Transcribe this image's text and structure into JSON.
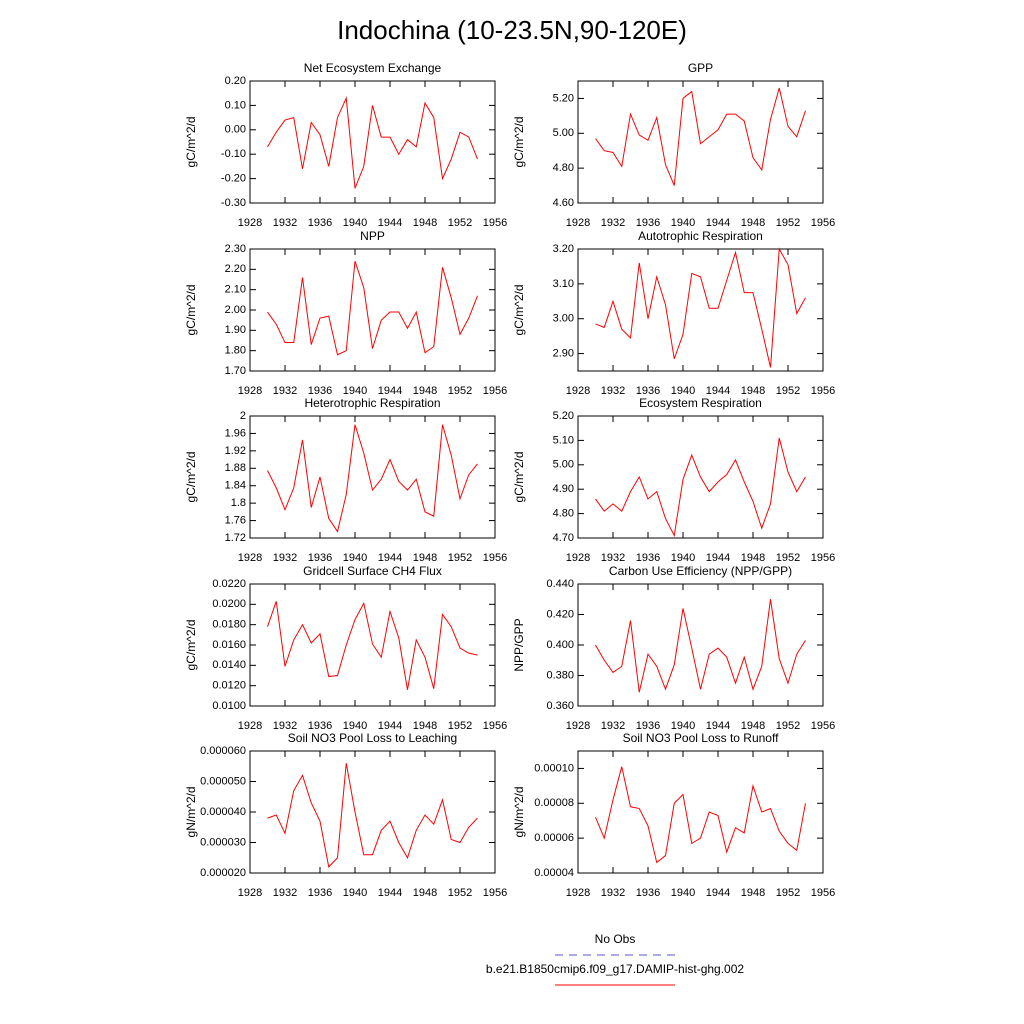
{
  "title": "Indochina (10-23.5N,90-120E)",
  "legend": [
    {
      "name": "No Obs",
      "color": "#5555cc",
      "dash": true
    },
    {
      "name": "b.e21.B1850cmip6.f09_g17.DAMIP-hist-ghg.002",
      "color": "#ff0000"
    }
  ],
  "chart_data": [
    {
      "type": "line",
      "title": "Net Ecosystem Exchange",
      "y_label": "gC/m^2/d",
      "color": "#ff0000",
      "x": [
        1930,
        1931,
        1932,
        1933,
        1934,
        1935,
        1936,
        1937,
        1938,
        1939,
        1940,
        1941,
        1942,
        1943,
        1944,
        1945,
        1946,
        1947,
        1948,
        1949,
        1950,
        1951,
        1952,
        1953,
        1954
      ],
      "values": [
        -0.07,
        -0.01,
        0.04,
        0.05,
        -0.16,
        0.03,
        -0.02,
        -0.15,
        0.05,
        0.13,
        -0.24,
        -0.15,
        0.1,
        -0.03,
        -0.03,
        -0.1,
        -0.04,
        -0.07,
        0.11,
        0.05,
        -0.2,
        -0.12,
        -0.01,
        -0.03,
        -0.12
      ],
      "xlim": [
        1928,
        1956
      ],
      "xticks": [
        1928,
        1932,
        1936,
        1940,
        1944,
        1948,
        1952,
        1956
      ],
      "ylim": [
        -0.3,
        0.2
      ],
      "yticks": [
        {
          "value": -0.3,
          "label": "-0.30"
        },
        {
          "value": -0.2,
          "label": "-0.20"
        },
        {
          "value": -0.1,
          "label": "-0.10"
        },
        {
          "value": 0,
          "label": "0.00"
        },
        {
          "value": 0.1,
          "label": "0.10"
        },
        {
          "value": 0.2,
          "label": "0.20"
        }
      ]
    },
    {
      "type": "line",
      "title": "GPP",
      "y_label": "gC/m^2/d",
      "color": "#ff0000",
      "x": [
        1930,
        1931,
        1932,
        1933,
        1934,
        1935,
        1936,
        1937,
        1938,
        1939,
        1940,
        1941,
        1942,
        1943,
        1944,
        1945,
        1946,
        1947,
        1948,
        1949,
        1950,
        1951,
        1952,
        1953,
        1954
      ],
      "values": [
        4.97,
        4.9,
        4.89,
        4.81,
        5.11,
        4.99,
        4.96,
        5.09,
        4.82,
        4.7,
        5.2,
        5.24,
        4.94,
        4.98,
        5.02,
        5.11,
        5.11,
        5.07,
        4.86,
        4.79,
        5.08,
        5.26,
        5.04,
        4.98,
        5.13
      ],
      "xlim": [
        1928,
        1956
      ],
      "xticks": [
        1928,
        1932,
        1936,
        1940,
        1944,
        1948,
        1952,
        1956
      ],
      "ylim": [
        4.6,
        5.3
      ],
      "yticks": [
        {
          "value": 4.6,
          "label": "4.60"
        },
        {
          "value": 4.8,
          "label": "4.80"
        },
        {
          "value": 5.0,
          "label": "5.00"
        },
        {
          "value": 5.2,
          "label": "5.20"
        }
      ]
    },
    {
      "type": "line",
      "title": "NPP",
      "y_label": "gC/m^2/d",
      "color": "#ff0000",
      "x": [
        1930,
        1931,
        1932,
        1933,
        1934,
        1935,
        1936,
        1937,
        1938,
        1939,
        1940,
        1941,
        1942,
        1943,
        1944,
        1945,
        1946,
        1947,
        1948,
        1949,
        1950,
        1951,
        1952,
        1953,
        1954
      ],
      "values": [
        1.99,
        1.93,
        1.84,
        1.84,
        2.16,
        1.83,
        1.96,
        1.97,
        1.78,
        1.8,
        2.24,
        2.11,
        1.81,
        1.95,
        1.99,
        1.99,
        1.91,
        1.99,
        1.79,
        1.82,
        2.21,
        2.06,
        1.88,
        1.96,
        2.07
      ],
      "xlim": [
        1928,
        1956
      ],
      "xticks": [
        1928,
        1932,
        1936,
        1940,
        1944,
        1948,
        1952,
        1956
      ],
      "ylim": [
        1.7,
        2.3
      ],
      "yticks": [
        {
          "value": 1.7,
          "label": "1.70"
        },
        {
          "value": 1.8,
          "label": "1.80"
        },
        {
          "value": 1.9,
          "label": "1.90"
        },
        {
          "value": 2.0,
          "label": "2.00"
        },
        {
          "value": 2.1,
          "label": "2.10"
        },
        {
          "value": 2.2,
          "label": "2.20"
        },
        {
          "value": 2.3,
          "label": "2.30"
        }
      ]
    },
    {
      "type": "line",
      "title": "Autotrophic Respiration",
      "y_label": "gC/m^2/d",
      "color": "#ff0000",
      "x": [
        1930,
        1931,
        1932,
        1933,
        1934,
        1935,
        1936,
        1937,
        1938,
        1939,
        1940,
        1941,
        1942,
        1943,
        1944,
        1945,
        1946,
        1947,
        1948,
        1949,
        1950,
        1951,
        1952,
        1953,
        1954
      ],
      "values": [
        2.985,
        2.975,
        3.05,
        2.97,
        2.945,
        3.16,
        3.0,
        3.12,
        3.04,
        2.885,
        2.955,
        3.13,
        3.12,
        3.03,
        3.03,
        3.11,
        3.19,
        3.075,
        3.075,
        2.97,
        2.86,
        3.2,
        3.155,
        3.015,
        3.06
      ],
      "xlim": [
        1928,
        1956
      ],
      "xticks": [
        1928,
        1932,
        1936,
        1940,
        1944,
        1948,
        1952,
        1956
      ],
      "ylim": [
        2.85,
        3.2
      ],
      "yticks": [
        {
          "value": 2.9,
          "label": "2.90"
        },
        {
          "value": 3.0,
          "label": "3.00"
        },
        {
          "value": 3.1,
          "label": "3.10"
        },
        {
          "value": 3.2,
          "label": "3.20"
        }
      ]
    },
    {
      "type": "line",
      "title": "Heterotrophic Respiration",
      "y_label": "gC/m^2/d",
      "color": "#ff0000",
      "x": [
        1930,
        1931,
        1932,
        1933,
        1934,
        1935,
        1936,
        1937,
        1938,
        1939,
        1940,
        1941,
        1942,
        1943,
        1944,
        1945,
        1946,
        1947,
        1948,
        1949,
        1950,
        1951,
        1952,
        1953,
        1954
      ],
      "values": [
        1.875,
        1.835,
        1.785,
        1.835,
        1.945,
        1.79,
        1.86,
        1.765,
        1.735,
        1.82,
        1.98,
        1.915,
        1.83,
        1.855,
        1.9,
        1.85,
        1.83,
        1.855,
        1.78,
        1.77,
        1.98,
        1.91,
        1.81,
        1.865,
        1.89
      ],
      "xlim": [
        1928,
        1956
      ],
      "xticks": [
        1928,
        1932,
        1936,
        1940,
        1944,
        1948,
        1952,
        1956
      ],
      "ylim": [
        1.72,
        2.0
      ],
      "yticks": [
        1.72,
        1.76,
        1.8,
        1.84,
        1.88,
        1.92,
        1.96,
        2.0
      ]
    },
    {
      "type": "line",
      "title": "Ecosystem Respiration",
      "y_label": "gC/m^2/d",
      "color": "#ff0000",
      "x": [
        1930,
        1931,
        1932,
        1933,
        1934,
        1935,
        1936,
        1937,
        1938,
        1939,
        1940,
        1941,
        1942,
        1943,
        1944,
        1945,
        1946,
        1947,
        1948,
        1949,
        1950,
        1951,
        1952,
        1953,
        1954
      ],
      "values": [
        4.86,
        4.81,
        4.84,
        4.81,
        4.89,
        4.95,
        4.86,
        4.89,
        4.78,
        4.71,
        4.94,
        5.04,
        4.95,
        4.89,
        4.93,
        4.96,
        5.02,
        4.93,
        4.85,
        4.74,
        4.84,
        5.11,
        4.97,
        4.89,
        4.95
      ],
      "xlim": [
        1928,
        1956
      ],
      "xticks": [
        1928,
        1932,
        1936,
        1940,
        1944,
        1948,
        1952,
        1956
      ],
      "ylim": [
        4.7,
        5.2
      ],
      "yticks": [
        {
          "value": 4.7,
          "label": "4.70"
        },
        {
          "value": 4.8,
          "label": "4.80"
        },
        {
          "value": 4.9,
          "label": "4.90"
        },
        {
          "value": 5.0,
          "label": "5.00"
        },
        {
          "value": 5.1,
          "label": "5.10"
        },
        {
          "value": 5.2,
          "label": "5.20"
        }
      ]
    },
    {
      "type": "line",
      "title": "Gridcell Surface CH4 Flux",
      "y_label": "gC/m^2/d",
      "color": "#ff0000",
      "x": [
        1930,
        1931,
        1932,
        1933,
        1934,
        1935,
        1936,
        1937,
        1938,
        1939,
        1940,
        1941,
        1942,
        1943,
        1944,
        1945,
        1946,
        1947,
        1948,
        1949,
        1950,
        1951,
        1952,
        1953,
        1954
      ],
      "values": [
        0.0178,
        0.0203,
        0.0139,
        0.0165,
        0.018,
        0.0162,
        0.0171,
        0.0129,
        0.013,
        0.016,
        0.0185,
        0.0201,
        0.0161,
        0.0148,
        0.0193,
        0.0167,
        0.0116,
        0.0165,
        0.0148,
        0.0117,
        0.019,
        0.0178,
        0.0157,
        0.0152,
        0.015
      ],
      "xlim": [
        1928,
        1956
      ],
      "xticks": [
        1928,
        1932,
        1936,
        1940,
        1944,
        1948,
        1952,
        1956
      ],
      "ylim": [
        0.01,
        0.022
      ],
      "yticks": [
        {
          "value": 0.01,
          "label": "0.0100"
        },
        {
          "value": 0.012,
          "label": "0.0120"
        },
        {
          "value": 0.014,
          "label": "0.0140"
        },
        {
          "value": 0.016,
          "label": "0.0160"
        },
        {
          "value": 0.018,
          "label": "0.0180"
        },
        {
          "value": 0.02,
          "label": "0.0200"
        },
        {
          "value": 0.022,
          "label": "0.0220"
        }
      ]
    },
    {
      "type": "line",
      "title": "Carbon Use Efficiency (NPP/GPP)",
      "y_label": "NPP/GPP",
      "color": "#ff0000",
      "x": [
        1930,
        1931,
        1932,
        1933,
        1934,
        1935,
        1936,
        1937,
        1938,
        1939,
        1940,
        1941,
        1942,
        1943,
        1944,
        1945,
        1946,
        1947,
        1948,
        1949,
        1950,
        1951,
        1952,
        1953,
        1954
      ],
      "values": [
        0.4,
        0.39,
        0.382,
        0.386,
        0.416,
        0.369,
        0.394,
        0.386,
        0.371,
        0.387,
        0.424,
        0.398,
        0.371,
        0.394,
        0.398,
        0.392,
        0.375,
        0.392,
        0.371,
        0.386,
        0.43,
        0.391,
        0.375,
        0.394,
        0.403
      ],
      "xlim": [
        1928,
        1956
      ],
      "xticks": [
        1928,
        1932,
        1936,
        1940,
        1944,
        1948,
        1952,
        1956
      ],
      "ylim": [
        0.36,
        0.44
      ],
      "yticks": [
        {
          "value": 0.36,
          "label": "0.360"
        },
        {
          "value": 0.38,
          "label": "0.380"
        },
        {
          "value": 0.4,
          "label": "0.400"
        },
        {
          "value": 0.42,
          "label": "0.420"
        },
        {
          "value": 0.44,
          "label": "0.440"
        }
      ]
    },
    {
      "type": "line",
      "title": "Soil NO3 Pool Loss to Leaching",
      "y_label": "gN/m^2/d",
      "color": "#ff0000",
      "x": [
        1930,
        1931,
        1932,
        1933,
        1934,
        1935,
        1936,
        1937,
        1938,
        1939,
        1940,
        1941,
        1942,
        1943,
        1944,
        1945,
        1946,
        1947,
        1948,
        1949,
        1950,
        1951,
        1952,
        1953,
        1954
      ],
      "values": [
        3.8e-05,
        3.9e-05,
        3.3e-05,
        4.7e-05,
        5.2e-05,
        4.3e-05,
        3.7e-05,
        2.2e-05,
        2.5e-05,
        5.6e-05,
        4e-05,
        2.6e-05,
        2.6e-05,
        3.4e-05,
        3.7e-05,
        3e-05,
        2.5e-05,
        3.4e-05,
        3.9e-05,
        3.6e-05,
        4.4e-05,
        3.1e-05,
        3e-05,
        3.5e-05,
        3.8e-05
      ],
      "xlim": [
        1928,
        1956
      ],
      "xticks": [
        1928,
        1932,
        1936,
        1940,
        1944,
        1948,
        1952,
        1956
      ],
      "ylim": [
        2e-05,
        6e-05
      ],
      "yticks": [
        {
          "value": 2e-05,
          "label": "0.000020"
        },
        {
          "value": 3e-05,
          "label": "0.000030"
        },
        {
          "value": 4e-05,
          "label": "0.000040"
        },
        {
          "value": 5e-05,
          "label": "0.000050"
        },
        {
          "value": 6e-05,
          "label": "0.000060"
        }
      ]
    },
    {
      "type": "line",
      "title": "Soil NO3 Pool Loss to Runoff",
      "y_label": "gN/m^2/d",
      "color": "#ff0000",
      "x": [
        1930,
        1931,
        1932,
        1933,
        1934,
        1935,
        1936,
        1937,
        1938,
        1939,
        1940,
        1941,
        1942,
        1943,
        1944,
        1945,
        1946,
        1947,
        1948,
        1949,
        1950,
        1951,
        1952,
        1953,
        1954
      ],
      "values": [
        7.2e-05,
        6e-05,
        8.2e-05,
        0.000101,
        7.8e-05,
        7.7e-05,
        6.7e-05,
        4.6e-05,
        5e-05,
        8e-05,
        8.5e-05,
        5.7e-05,
        6e-05,
        7.5e-05,
        7.3e-05,
        5.2e-05,
        6.6e-05,
        6.3e-05,
        9e-05,
        7.5e-05,
        7.7e-05,
        6.4e-05,
        5.7e-05,
        5.3e-05,
        8e-05
      ],
      "xlim": [
        1928,
        1956
      ],
      "xticks": [
        1928,
        1932,
        1936,
        1940,
        1944,
        1948,
        1952,
        1956
      ],
      "ylim": [
        4e-05,
        0.00011
      ],
      "yticks": [
        {
          "value": 4e-05,
          "label": "0.00004"
        },
        {
          "value": 6e-05,
          "label": "0.00006"
        },
        {
          "value": 8e-05,
          "label": "0.00008"
        },
        {
          "value": 0.0001,
          "label": "0.00010"
        }
      ]
    }
  ]
}
